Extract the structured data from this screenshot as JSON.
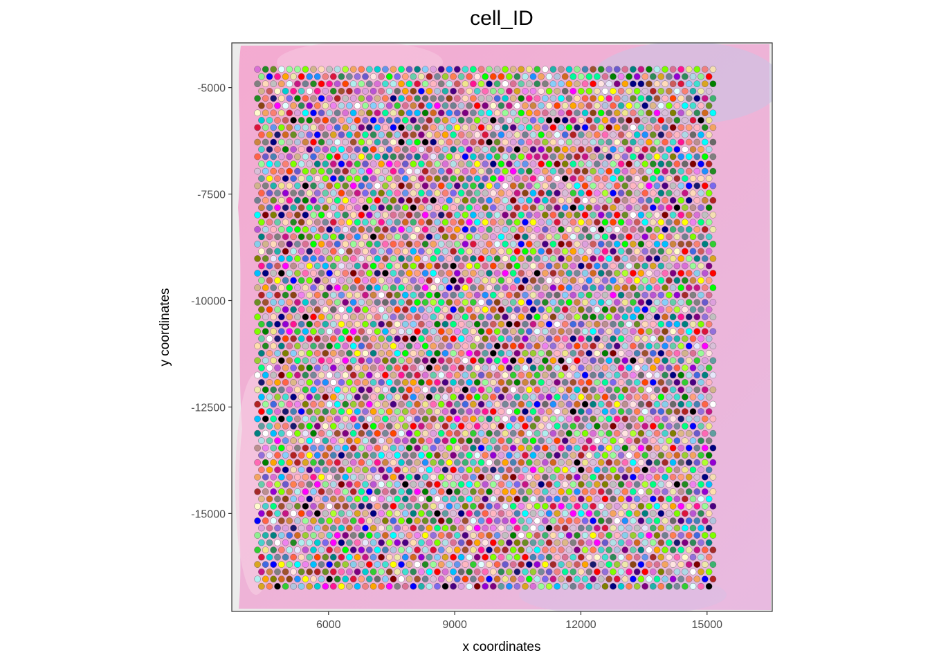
{
  "chart_data": {
    "type": "scatter",
    "title": "cell_ID",
    "xlabel": "x coordinates",
    "ylabel": "y coordinates",
    "xlim": [
      3700,
      16550
    ],
    "ylim": [
      -17300,
      -3950
    ],
    "x_ticks": [
      6000,
      9000,
      12000,
      15000
    ],
    "x_tick_labels": [
      "6000",
      "9000",
      "12000",
      "15000"
    ],
    "y_ticks": [
      -5000,
      -7500,
      -10000,
      -12500,
      -15000
    ],
    "y_tick_labels": [
      "-5000",
      "-7500",
      "-10000",
      "-12500",
      "-15000"
    ],
    "background_image": "H&E tissue section (pink/purple), partially transparent",
    "grid": false,
    "legend": "none",
    "spots": {
      "layout": "hexagonal grid",
      "x_min": 4311,
      "x_max": 15221,
      "x_step": 190,
      "y_min": -16880,
      "y_max": -4570,
      "y_step": 171,
      "count_estimate": 4900,
      "color_rule": "each spot has a distinct cell_ID color (many-colour palette)",
      "outline_color": "#555555"
    },
    "palette": [
      "#ff0000",
      "#00ff00",
      "#0000ff",
      "#ffff00",
      "#ff00ff",
      "#00ffff",
      "#800000",
      "#808000",
      "#008000",
      "#800080",
      "#008080",
      "#000080",
      "#ffa500",
      "#a52a2a",
      "#deb887",
      "#5f9ea0",
      "#7fff00",
      "#d2691e",
      "#ff7f50",
      "#6495ed",
      "#dc143c",
      "#00ced1",
      "#9400d3",
      "#ff1493",
      "#00bfff",
      "#696969",
      "#1e90ff",
      "#b22222",
      "#228b22",
      "#daa520",
      "#808080",
      "#adff2f",
      "#ff69b4",
      "#cd5c5c",
      "#4b0082",
      "#f0e68c",
      "#e6e6fa",
      "#7cfc00",
      "#add8e6",
      "#f08080",
      "#90ee90",
      "#ffb6c1",
      "#ffa07a",
      "#20b2aa",
      "#87cefa",
      "#778899",
      "#b0c4de",
      "#32cd32",
      "#66cdaa",
      "#ba55d3",
      "#9370db",
      "#3cb371",
      "#7b68ee",
      "#00fa9a",
      "#48d1cc",
      "#c71585",
      "#191970",
      "#ffe4e1",
      "#ffdead",
      "#6b8e23",
      "#ff4500",
      "#da70d6",
      "#eee8aa",
      "#98fb98",
      "#afeeee",
      "#db7093",
      "#ffdab9",
      "#cd853f",
      "#dda0dd",
      "#b0e0e6",
      "#bc8f8f",
      "#4169e1",
      "#8b4513",
      "#fa8072",
      "#f4a460",
      "#2e8b57",
      "#a0522d",
      "#c0c0c0",
      "#87ceeb",
      "#6a5acd",
      "#708090",
      "#00ff7f",
      "#4682b4",
      "#d2b48c",
      "#d8bfd8",
      "#ff6347",
      "#40e0d0",
      "#ee82ee",
      "#f5deb3",
      "#9acd32",
      "#000000",
      "#ffffff",
      "#fffacd",
      "#e0ffff"
    ]
  }
}
